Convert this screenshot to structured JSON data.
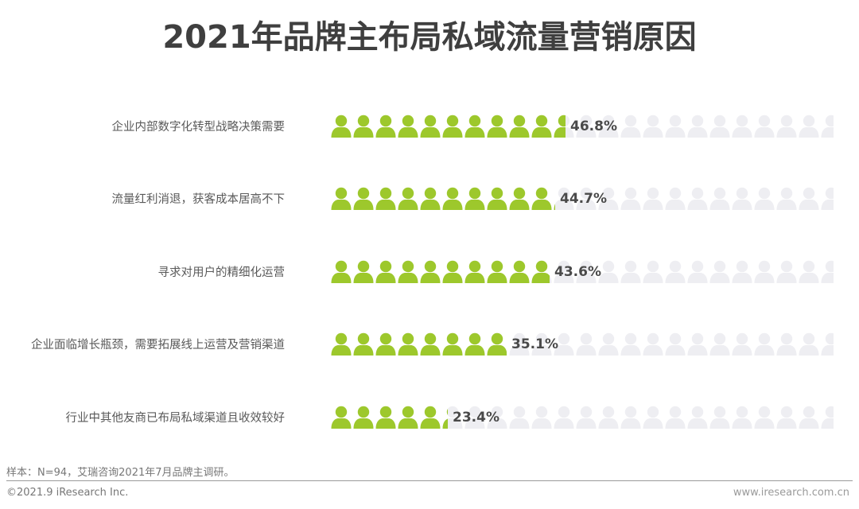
{
  "title": "2021年品牌主布局私域流量营销原因",
  "colors": {
    "filled": "#9dc82c",
    "empty": "#eeeef2",
    "pct_text": "#4a4a4a",
    "label_text": "#595959"
  },
  "rows": [
    {
      "label": "企业内部数字化转型战略决策需要",
      "value": 46.8,
      "display": "46.8%"
    },
    {
      "label": "流量红利消退，获客成本居高不下",
      "value": 44.7,
      "display": "44.7%"
    },
    {
      "label": "寻求对用户的精细化运营",
      "value": 43.6,
      "display": "43.6%"
    },
    {
      "label": "企业面临增长瓶颈，需要拓展线上运营及营销渠道",
      "value": 35.1,
      "display": "35.1%"
    },
    {
      "label": "行业中其他友商已布局私域渠道且收效较好",
      "value": 23.4,
      "display": "23.4%"
    }
  ],
  "footer": {
    "note": "样本：N=94，艾瑞咨询2021年7月品牌主调研。",
    "copyright": "©2021.9 iResearch Inc.",
    "url": "www.iresearch.com.cn"
  },
  "chart_data": {
    "type": "bar",
    "subtype": "pictograph",
    "title": "2021年品牌主布局私域流量营销原因",
    "categories": [
      "企业内部数字化转型战略决策需要",
      "流量红利消退，获客成本居高不下",
      "寻求对用户的精细化运营",
      "企业面临增长瓶颈，需要拓展线上运营及营销渠道",
      "行业中其他友商已布局私域渠道且收效较好"
    ],
    "values": [
      46.8,
      44.7,
      43.6,
      35.1,
      23.4
    ],
    "unit": "%",
    "xlabel": "",
    "ylabel": "",
    "xlim": [
      0,
      100
    ],
    "grid": false,
    "legend": null,
    "source_note": "样本：N=94，艾瑞咨询2021年7月品牌主调研。"
  }
}
